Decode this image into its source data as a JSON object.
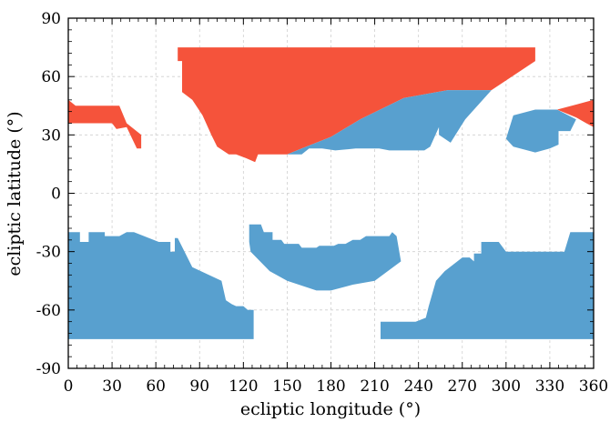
{
  "chart_data": {
    "type": "area",
    "xlabel": "ecliptic longitude (°)",
    "ylabel": "ecliptic latitude (°)",
    "xlim": [
      0,
      360
    ],
    "ylim": [
      -90,
      90
    ],
    "xticks": [
      0,
      30,
      60,
      90,
      120,
      150,
      180,
      210,
      240,
      270,
      300,
      330,
      360
    ],
    "yticks": [
      -90,
      -60,
      -30,
      0,
      30,
      60,
      90
    ],
    "grid": true,
    "colors": {
      "red": "#f5533b",
      "blue": "#58a0cf",
      "grid": "#cfcfcf"
    },
    "series": [
      {
        "color": "red",
        "regions": [
          [
            [
              75,
              75
            ],
            [
              320,
              75
            ],
            [
              320,
              68
            ],
            [
              290,
              53
            ],
            [
              282,
              53
            ],
            [
              260,
              53
            ],
            [
              230,
              49
            ],
            [
              200,
              38
            ],
            [
              180,
              29
            ],
            [
              160,
              23
            ],
            [
              150,
              20
            ],
            [
              130,
              20
            ],
            [
              128,
              16
            ],
            [
              122,
              18
            ],
            [
              115,
              20
            ],
            [
              110,
              20
            ],
            [
              102,
              24
            ],
            [
              98,
              30
            ],
            [
              92,
              40
            ],
            [
              85,
              48
            ],
            [
              78,
              52
            ],
            [
              78,
              68
            ],
            [
              75,
              68
            ]
          ],
          [
            [
              0,
              48
            ],
            [
              0,
              36
            ],
            [
              30,
              36
            ],
            [
              33,
              33
            ],
            [
              40,
              34
            ],
            [
              47,
              23
            ],
            [
              50,
              23
            ],
            [
              50,
              30
            ],
            [
              40,
              36
            ],
            [
              35,
              45
            ],
            [
              5,
              45
            ]
          ],
          [
            [
              335,
              43
            ],
            [
              360,
              48
            ],
            [
              360,
              34
            ],
            [
              355,
              36
            ],
            [
              348,
              39
            ]
          ]
        ]
      },
      {
        "color": "blue",
        "regions": [
          [
            [
              150,
              20
            ],
            [
              160,
              23
            ],
            [
              180,
              29
            ],
            [
              200,
              38
            ],
            [
              230,
              49
            ],
            [
              260,
              53
            ],
            [
              282,
              53
            ],
            [
              290,
              53
            ],
            [
              272,
              38
            ],
            [
              262,
              26
            ],
            [
              254,
              30
            ],
            [
              254,
              34
            ],
            [
              248,
              24
            ],
            [
              244,
              22
            ],
            [
              220,
              22
            ],
            [
              213,
              23
            ],
            [
              202,
              23
            ],
            [
              197,
              23
            ],
            [
              183,
              22
            ],
            [
              174,
              23
            ],
            [
              165,
              23
            ],
            [
              160,
              20
            ]
          ],
          [
            [
              300,
              28
            ],
            [
              305,
              40
            ],
            [
              320,
              43
            ],
            [
              335,
              43
            ],
            [
              348,
              38
            ],
            [
              344,
              32
            ],
            [
              336,
              32
            ],
            [
              336,
              25
            ],
            [
              330,
              23
            ],
            [
              320,
              21
            ],
            [
              305,
              24
            ]
          ],
          [
            [
              0,
              -20
            ],
            [
              8,
              -20
            ],
            [
              8,
              -25
            ],
            [
              14,
              -25
            ],
            [
              14,
              -20
            ],
            [
              25,
              -20
            ],
            [
              25,
              -22
            ],
            [
              35,
              -22
            ],
            [
              40,
              -20
            ],
            [
              45,
              -20
            ],
            [
              62,
              -25
            ],
            [
              70,
              -25
            ],
            [
              70,
              -30
            ],
            [
              73,
              -30
            ],
            [
              73,
              -23
            ],
            [
              75,
              -23
            ],
            [
              85,
              -38
            ],
            [
              105,
              -45
            ],
            [
              108,
              -55
            ],
            [
              112,
              -57
            ],
            [
              115,
              -58
            ],
            [
              120,
              -58
            ],
            [
              123,
              -60
            ],
            [
              127,
              -60
            ],
            [
              127,
              -75
            ],
            [
              0,
              -75
            ]
          ],
          [
            [
              124,
              -16
            ],
            [
              132,
              -16
            ],
            [
              134,
              -20
            ],
            [
              140,
              -20
            ],
            [
              140,
              -24
            ],
            [
              146,
              -24
            ],
            [
              148,
              -26
            ],
            [
              158,
              -26
            ],
            [
              160,
              -28
            ],
            [
              170,
              -28
            ],
            [
              172,
              -27
            ],
            [
              182,
              -27
            ],
            [
              185,
              -26
            ],
            [
              190,
              -26
            ],
            [
              195,
              -24
            ],
            [
              200,
              -24
            ],
            [
              204,
              -22
            ],
            [
              218,
              -22
            ],
            [
              220,
              -22
            ],
            [
              222,
              -20
            ],
            [
              225,
              -22
            ],
            [
              228,
              -35
            ],
            [
              210,
              -45
            ],
            [
              195,
              -47
            ],
            [
              180,
              -50
            ],
            [
              170,
              -50
            ],
            [
              150,
              -45
            ],
            [
              138,
              -40
            ],
            [
              125,
              -30
            ],
            [
              124,
              -25
            ]
          ],
          [
            [
              214,
              -66
            ],
            [
              214,
              -75
            ],
            [
              360,
              -75
            ],
            [
              360,
              -20
            ],
            [
              344,
              -20
            ],
            [
              340,
              -30
            ],
            [
              312,
              -30
            ],
            [
              300,
              -30
            ],
            [
              295,
              -25
            ],
            [
              283,
              -25
            ],
            [
              283,
              -31
            ],
            [
              278,
              -31
            ],
            [
              278,
              -35
            ],
            [
              275,
              -33
            ],
            [
              270,
              -33
            ],
            [
              258,
              -40
            ],
            [
              252,
              -45
            ],
            [
              247,
              -58
            ],
            [
              245,
              -64
            ],
            [
              238,
              -66
            ]
          ]
        ]
      }
    ]
  }
}
